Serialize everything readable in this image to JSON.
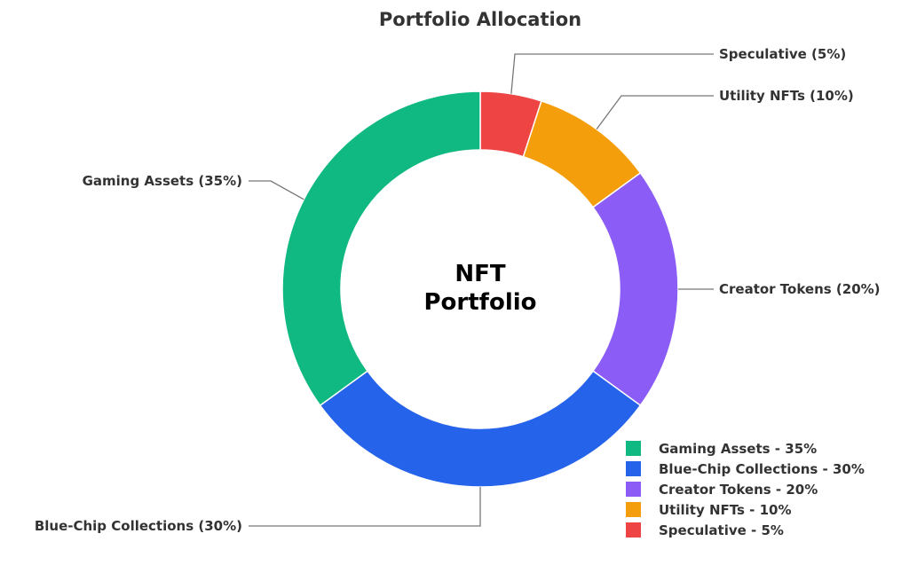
{
  "chart_data": {
    "type": "pie",
    "variant": "donut",
    "title": "Portfolio Allocation",
    "center_label": [
      "NFT",
      "Portfolio"
    ],
    "start_angle_deg": 0,
    "direction": "clockwise",
    "slices": [
      {
        "category": "Speculative",
        "value": 5,
        "color": "#ef4444",
        "label": "Speculative (5%)"
      },
      {
        "category": "Utility NFTs",
        "value": 10,
        "color": "#f59e0b",
        "label": "Utility NFTs (10%)"
      },
      {
        "category": "Creator Tokens",
        "value": 20,
        "color": "#8b5cf6",
        "label": "Creator Tokens (20%)"
      },
      {
        "category": "Blue-Chip Collections",
        "value": 30,
        "color": "#2563eb",
        "label": "Blue-Chip Collections (30%)"
      },
      {
        "category": "Gaming Assets",
        "value": 35,
        "color": "#10b981",
        "label": "Gaming Assets (35%)"
      }
    ],
    "legend": {
      "placement": "bottom-right",
      "entries": [
        {
          "label": "Gaming Assets - 35%",
          "color": "#10b981"
        },
        {
          "label": "Blue-Chip Collections - 30%",
          "color": "#2563eb"
        },
        {
          "label": "Creator Tokens - 20%",
          "color": "#8b5cf6"
        },
        {
          "label": "Utility NFTs - 10%",
          "color": "#f59e0b"
        },
        {
          "label": "Speculative - 5%",
          "color": "#ef4444"
        }
      ]
    }
  }
}
